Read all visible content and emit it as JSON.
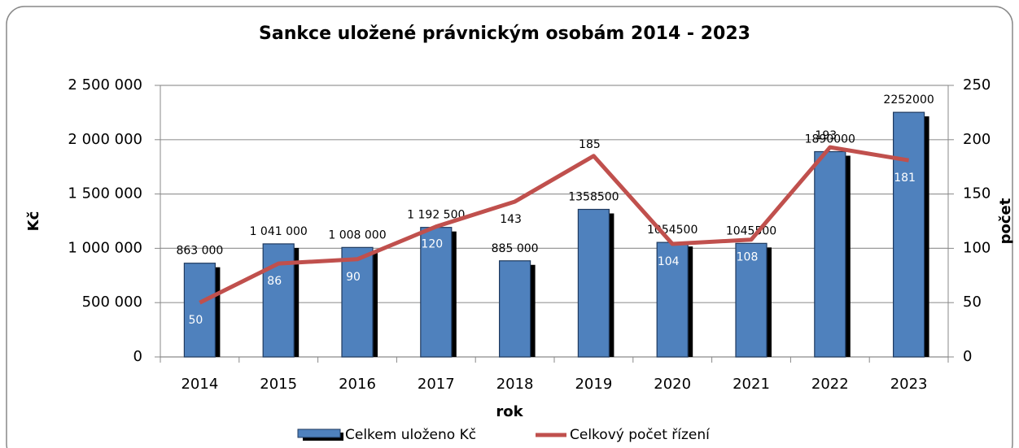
{
  "chart_data": {
    "type": "bar-line",
    "title": "Sankce uložené právnickým osobám 2014 - 2023",
    "x_label": "rok",
    "y_label": "Kč",
    "y2_label": "počet",
    "categories": [
      "2014",
      "2015",
      "2016",
      "2017",
      "2018",
      "2019",
      "2020",
      "2021",
      "2022",
      "2023"
    ],
    "series": [
      {
        "name": "Celkem uloženo Kč",
        "type": "bar",
        "color": "#4f81bd",
        "values": [
          863000,
          1041000,
          1008000,
          1192500,
          885000,
          1358500,
          1054500,
          1045500,
          1890000,
          2252000
        ],
        "value_labels": [
          "863 000",
          "1 041 000",
          "1 008 000",
          "1 192 500",
          "885 000",
          "1358500",
          "1054500",
          "1045500",
          "1890000",
          "2252000"
        ]
      },
      {
        "name": "Celkový počet řízení",
        "type": "line",
        "color": "#c0504d",
        "axis": "y2",
        "values": [
          50,
          86,
          90,
          120,
          143,
          185,
          104,
          108,
          193,
          181
        ]
      }
    ],
    "ylim": [
      0,
      2500000
    ],
    "yticks": [
      {
        "value": 0,
        "label": "0"
      },
      {
        "value": 500000,
        "label": "500 000"
      },
      {
        "value": 1000000,
        "label": "1 000 000"
      },
      {
        "value": 1500000,
        "label": "1 500 000"
      },
      {
        "value": 2000000,
        "label": "2 000 000"
      },
      {
        "value": 2500000,
        "label": "2 500 000"
      }
    ],
    "y2lim": [
      0,
      250
    ],
    "y2ticks": [
      0,
      50,
      100,
      150,
      200,
      250
    ],
    "grid": true,
    "legend": "bottom"
  }
}
